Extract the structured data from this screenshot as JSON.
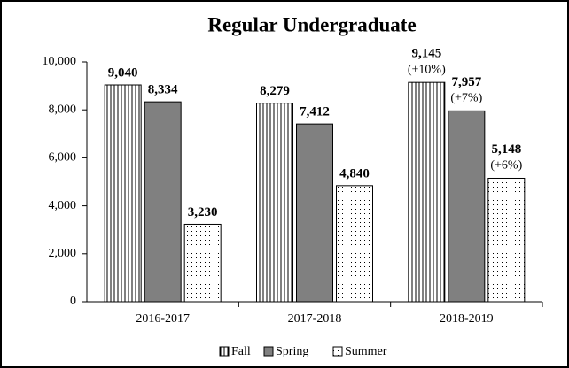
{
  "chart_data": {
    "type": "bar",
    "title": "Regular Undergraduate",
    "categories": [
      "2016-2017",
      "2017-2018",
      "2018-2019"
    ],
    "series": [
      {
        "name": "Fall",
        "color": "#000000",
        "pattern": "vertical-lines",
        "values": [
          9040,
          8279,
          9145
        ],
        "value_labels": [
          "9,040",
          "8,279",
          "9,145"
        ],
        "change_labels": [
          null,
          null,
          "(+10%)"
        ]
      },
      {
        "name": "Spring",
        "color": "#808080",
        "pattern": "solid",
        "values": [
          8334,
          7412,
          7957
        ],
        "value_labels": [
          "8,334",
          "7,412",
          "7,957"
        ],
        "change_labels": [
          null,
          null,
          "(+7%)"
        ]
      },
      {
        "name": "Summer",
        "color": "#000000",
        "pattern": "dots",
        "values": [
          3230,
          4840,
          5148
        ],
        "value_labels": [
          "3,230",
          "4,840",
          "5,148"
        ],
        "change_labels": [
          null,
          null,
          "(+6%)"
        ]
      }
    ],
    "ylim": [
      0,
      10000
    ],
    "yticks": [
      0,
      {
        "value": 2000,
        "label": "2,000"
      },
      {
        "value": 4000,
        "label": "4,000"
      },
      {
        "value": 6000,
        "label": "6,000"
      },
      {
        "value": 8000,
        "label": "8,000"
      },
      {
        "value": 10000,
        "label": "10,000"
      }
    ],
    "grid": false,
    "legend": "bottom"
  }
}
